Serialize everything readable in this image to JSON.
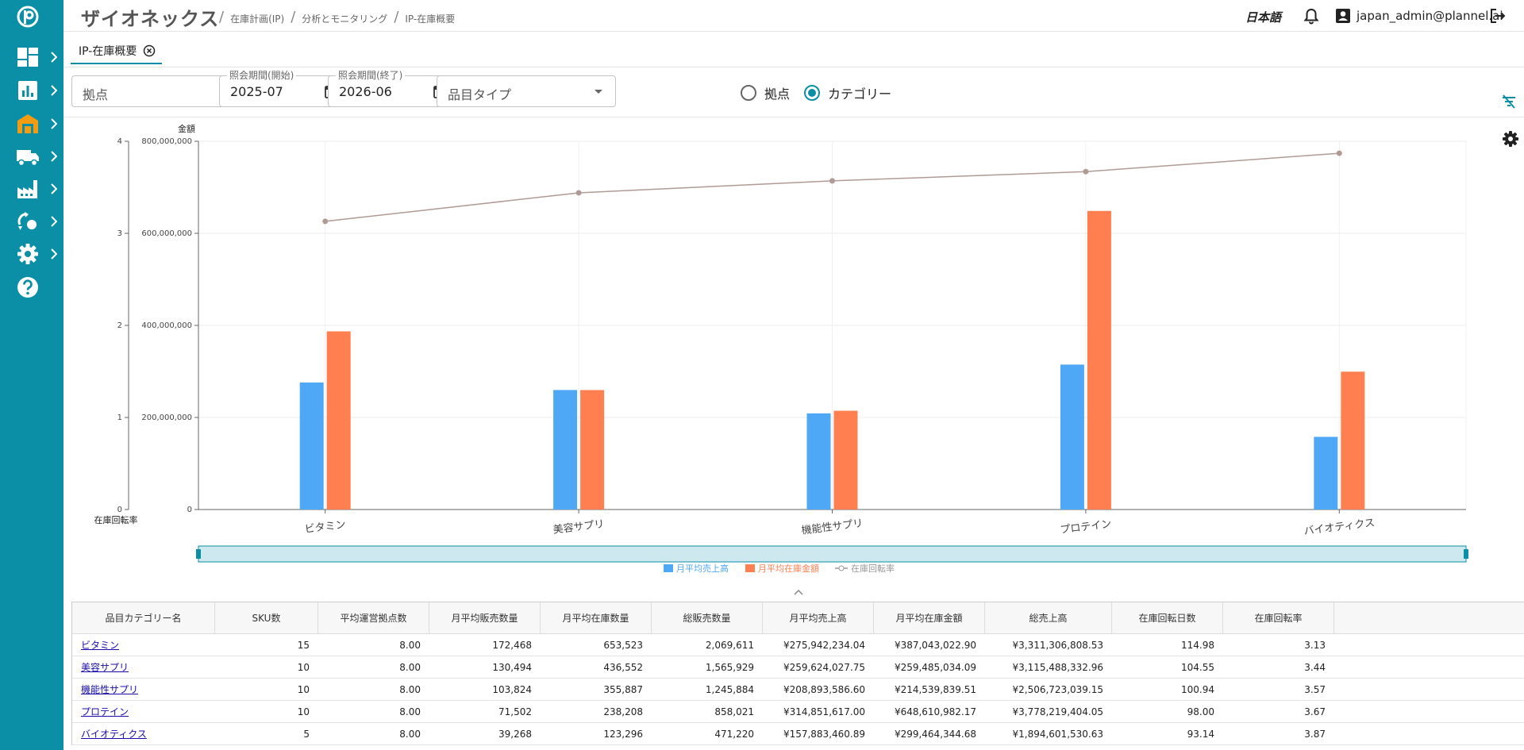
{
  "header": {
    "app_title": "ザイオネックス",
    "breadcrumbs": [
      "在庫計画(IP)",
      "分析とモニタリング",
      "IP-在庫概要"
    ],
    "language": "日本語",
    "user": "japan_admin@plannel.ai"
  },
  "tabs": [
    {
      "label": "IP-在庫概要",
      "active": true
    }
  ],
  "filters": {
    "site_placeholder": "拠点",
    "start_label": "照会期間(開始)",
    "start_value": "2025-07",
    "end_label": "照会期間(終了)",
    "end_value": "2026-06",
    "item_type_placeholder": "品目タイプ",
    "radio_site": "拠点",
    "radio_category": "カテゴリー",
    "selected": "category"
  },
  "colors": {
    "accent": "#0a8fa6",
    "sales": "#4fa8f5",
    "inventory": "#ff7f50",
    "turnover": "#b09a95"
  },
  "icons": [
    "logo-icon",
    "dashboard-icon",
    "chart-icon",
    "warehouse-icon",
    "truck-icon",
    "factory-icon",
    "recycle-icon",
    "gear-icon",
    "help-icon",
    "bell-icon",
    "user-icon",
    "logout-icon",
    "calendar-icon",
    "filter-off-icon",
    "close-icon"
  ],
  "chart_data": {
    "type": "bar",
    "categories": [
      "ビタミン",
      "美容サプリ",
      "機能性サプリ",
      "プロテイン",
      "バイオティクス"
    ],
    "series": [
      {
        "name": "月平均売上高",
        "type": "bar",
        "axis": "left",
        "values": [
          275942234.04,
          259624027.75,
          208893586.6,
          314851617.0,
          157883460.89
        ]
      },
      {
        "name": "月平均在庫金額",
        "type": "bar",
        "axis": "left",
        "values": [
          387043022.9,
          259485034.09,
          214539839.51,
          648610982.17,
          299464344.68
        ]
      },
      {
        "name": "在庫回転率",
        "type": "line",
        "axis": "right",
        "values": [
          3.13,
          3.44,
          3.57,
          3.67,
          3.87
        ]
      }
    ],
    "left_axis_label": "金額",
    "right_axis_label": "在庫回転率",
    "left_ticks": [
      "0",
      "200,000,000",
      "400,000,000",
      "600,000,000",
      "800,000,000"
    ],
    "right_ticks": [
      "0",
      "1",
      "2",
      "3",
      "4"
    ],
    "left_ylim": [
      0,
      800000000
    ],
    "right_ylim": [
      0,
      4
    ],
    "legend_position": "bottom",
    "grid": true
  },
  "table": {
    "columns": [
      "品目カテゴリー名",
      "SKU数",
      "平均運営拠点数",
      "月平均販売数量",
      "月平均在庫数量",
      "総販売数量",
      "月平均売上高",
      "月平均在庫金額",
      "総売上高",
      "在庫回転日数",
      "在庫回転率"
    ],
    "rows": [
      [
        "ビタミン",
        "15",
        "8.00",
        "172,468",
        "653,523",
        "2,069,611",
        "¥275,942,234.04",
        "¥387,043,022.90",
        "¥3,311,306,808.53",
        "114.98",
        "3.13"
      ],
      [
        "美容サプリ",
        "10",
        "8.00",
        "130,494",
        "436,552",
        "1,565,929",
        "¥259,624,027.75",
        "¥259,485,034.09",
        "¥3,115,488,332.96",
        "104.55",
        "3.44"
      ],
      [
        "機能性サプリ",
        "10",
        "8.00",
        "103,824",
        "355,887",
        "1,245,884",
        "¥208,893,586.60",
        "¥214,539,839.51",
        "¥2,506,723,039.15",
        "100.94",
        "3.57"
      ],
      [
        "プロテイン",
        "10",
        "8.00",
        "71,502",
        "238,208",
        "858,021",
        "¥314,851,617.00",
        "¥648,610,982.17",
        "¥3,778,219,404.05",
        "98.00",
        "3.67"
      ],
      [
        "バイオティクス",
        "5",
        "8.00",
        "39,268",
        "123,296",
        "471,220",
        "¥157,883,460.89",
        "¥299,464,344.68",
        "¥1,894,601,530.63",
        "93.14",
        "3.87"
      ]
    ]
  }
}
